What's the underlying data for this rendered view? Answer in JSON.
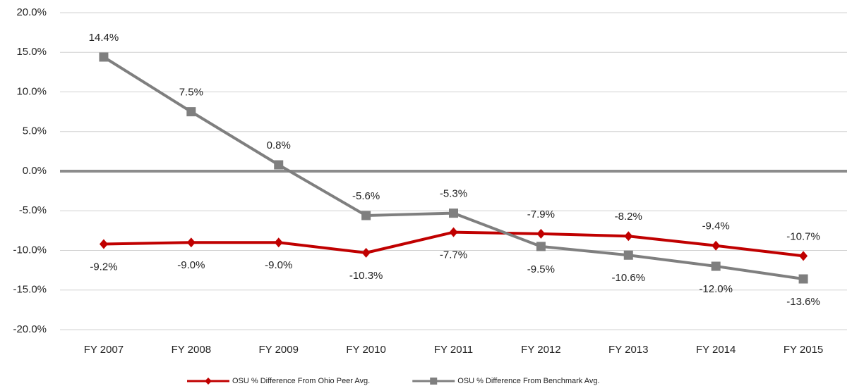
{
  "chart_data": {
    "type": "line",
    "categories": [
      "FY 2007",
      "FY 2008",
      "FY 2009",
      "FY 2010",
      "FY 2011",
      "FY 2012",
      "FY 2013",
      "FY 2014",
      "FY 2015"
    ],
    "series": [
      {
        "name": "OSU % Difference From Ohio Peer Avg.",
        "color": "#c00000",
        "marker": "diamond",
        "values": [
          -9.2,
          -9.0,
          -9.0,
          -10.3,
          -7.7,
          -7.9,
          -8.2,
          -9.4,
          -10.7
        ],
        "value_labels": [
          "-9.2%",
          "-9.0%",
          "-9.0%",
          "-10.3%",
          "-7.7%",
          "-7.9%",
          "-8.2%",
          "-9.4%",
          "-10.7%"
        ]
      },
      {
        "name": "OSU % Difference From Benchmark Avg.",
        "color": "#7f7f7f",
        "marker": "square",
        "values": [
          14.4,
          7.5,
          0.8,
          -5.6,
          -5.3,
          -9.5,
          -10.6,
          -12.0,
          -13.6
        ],
        "value_labels": [
          "14.4%",
          "7.5%",
          "0.8%",
          "-5.6%",
          "-5.3%",
          "-9.5%",
          "-10.6%",
          "-12.0%",
          "-13.6%"
        ]
      }
    ],
    "ylim": [
      -20,
      20
    ],
    "yticks": [
      {
        "value": -20,
        "label": "-20.0%"
      },
      {
        "value": -15,
        "label": "-15.0%"
      },
      {
        "value": -10,
        "label": "-10.0%"
      },
      {
        "value": -5,
        "label": "-5.0%"
      },
      {
        "value": 0,
        "label": "0.0%"
      },
      {
        "value": 5,
        "label": "5.0%"
      },
      {
        "value": 10,
        "label": "10.0%"
      },
      {
        "value": 15,
        "label": "15.0%"
      },
      {
        "value": 20,
        "label": "20.0%"
      }
    ],
    "grid": true,
    "legend": "bottom"
  }
}
